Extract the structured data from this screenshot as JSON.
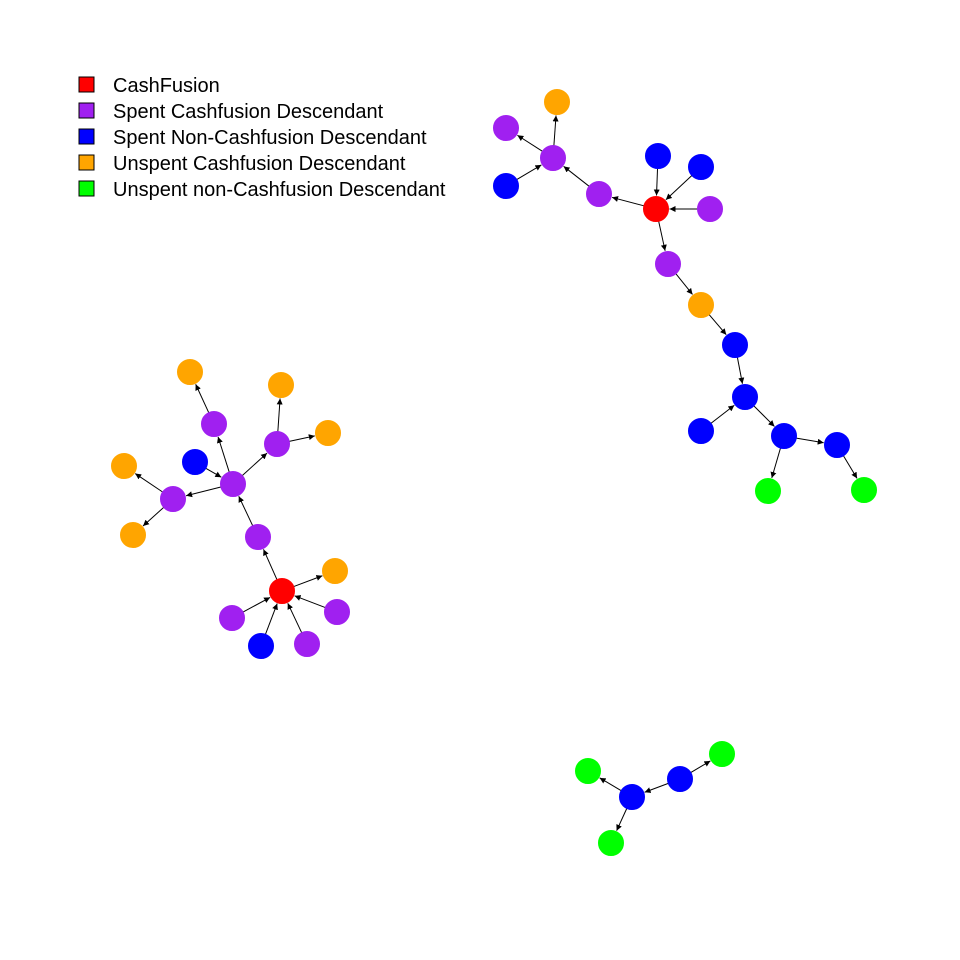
{
  "colors": {
    "cashfusion": "#ff0000",
    "spent_cf": "#a020f0",
    "spent_noncf": "#0000ff",
    "unspent_cf": "#ffa500",
    "unspent_noncf": "#00ff00",
    "edge": "#000000"
  },
  "legend": [
    {
      "label": "CashFusion",
      "type": "cashfusion"
    },
    {
      "label": "Spent Cashfusion Descendant",
      "type": "spent_cf"
    },
    {
      "label": "Spent Non-Cashfusion Descendant",
      "type": "spent_noncf"
    },
    {
      "label": "Unspent Cashfusion Descendant",
      "type": "unspent_cf"
    },
    {
      "label": "Unspent non-Cashfusion Descendant",
      "type": "unspent_noncf"
    }
  ],
  "nodes": [
    {
      "id": "A0",
      "type": "cashfusion"
    },
    {
      "id": "A1",
      "type": "spent_noncf"
    },
    {
      "id": "A2",
      "type": "spent_noncf"
    },
    {
      "id": "A3",
      "type": "spent_cf"
    },
    {
      "id": "A4",
      "type": "spent_cf"
    },
    {
      "id": "A5",
      "type": "spent_cf"
    },
    {
      "id": "A6",
      "type": "unspent_cf"
    },
    {
      "id": "A7",
      "type": "spent_cf"
    },
    {
      "id": "A8",
      "type": "spent_noncf"
    },
    {
      "id": "A9",
      "type": "spent_cf"
    },
    {
      "id": "A10",
      "type": "unspent_cf"
    },
    {
      "id": "A11",
      "type": "spent_noncf"
    },
    {
      "id": "A12",
      "type": "spent_noncf"
    },
    {
      "id": "A13",
      "type": "spent_noncf"
    },
    {
      "id": "A14",
      "type": "unspent_noncf"
    },
    {
      "id": "A15",
      "type": "spent_noncf"
    },
    {
      "id": "A16",
      "type": "unspent_noncf"
    },
    {
      "id": "A17",
      "type": "unspent_cf"
    },
    {
      "id": "A18",
      "type": "spent_cf"
    },
    {
      "id": "A19",
      "type": "spent_noncf"
    },
    {
      "id": "B0",
      "type": "cashfusion"
    },
    {
      "id": "B1",
      "type": "spent_cf"
    },
    {
      "id": "B2",
      "type": "spent_noncf"
    },
    {
      "id": "B3",
      "type": "spent_cf"
    },
    {
      "id": "B4",
      "type": "spent_cf"
    },
    {
      "id": "B5",
      "type": "unspent_cf"
    },
    {
      "id": "B6",
      "type": "spent_cf"
    },
    {
      "id": "B7",
      "type": "spent_cf"
    },
    {
      "id": "B8",
      "type": "spent_noncf"
    },
    {
      "id": "B9",
      "type": "spent_cf"
    },
    {
      "id": "B10",
      "type": "unspent_cf"
    },
    {
      "id": "B11",
      "type": "unspent_cf"
    },
    {
      "id": "B12",
      "type": "unspent_cf"
    },
    {
      "id": "B13",
      "type": "spent_cf"
    },
    {
      "id": "B14",
      "type": "unspent_cf"
    },
    {
      "id": "B15",
      "type": "unspent_cf"
    },
    {
      "id": "B16",
      "type": "unspent_cf"
    },
    {
      "id": "C0",
      "type": "spent_noncf"
    },
    {
      "id": "C1",
      "type": "spent_noncf"
    },
    {
      "id": "C2",
      "type": "unspent_noncf"
    },
    {
      "id": "C3",
      "type": "unspent_noncf"
    },
    {
      "id": "C4",
      "type": "unspent_noncf"
    }
  ],
  "edges": [
    [
      "A1",
      "A0"
    ],
    [
      "A2",
      "A0"
    ],
    [
      "A3",
      "A0"
    ],
    [
      "A0",
      "A4"
    ],
    [
      "A4",
      "A5"
    ],
    [
      "A5",
      "A6"
    ],
    [
      "A6",
      "A19"
    ],
    [
      "A19",
      "A8"
    ],
    [
      "A12",
      "A8"
    ],
    [
      "A8",
      "A13"
    ],
    [
      "A13",
      "A14"
    ],
    [
      "A13",
      "A15"
    ],
    [
      "A15",
      "A16"
    ],
    [
      "A0",
      "A7"
    ],
    [
      "A7",
      "A9"
    ],
    [
      "A9",
      "A10"
    ],
    [
      "A9",
      "A11"
    ],
    [
      "A9",
      "A18"
    ],
    [
      "A18",
      "A17"
    ],
    [
      "B1",
      "B0"
    ],
    [
      "B2",
      "B0"
    ],
    [
      "B3",
      "B0"
    ],
    [
      "B4",
      "B0"
    ],
    [
      "B0",
      "B5"
    ],
    [
      "B0",
      "B6"
    ],
    [
      "B6",
      "B7"
    ],
    [
      "B8",
      "B7"
    ],
    [
      "B7",
      "B9"
    ],
    [
      "B9",
      "B10"
    ],
    [
      "B7",
      "B13"
    ],
    [
      "B13",
      "B11"
    ],
    [
      "B13",
      "B12"
    ],
    [
      "B7",
      "B14"
    ],
    [
      "B14",
      "B15"
    ],
    [
      "B14",
      "B16"
    ],
    [
      "C0",
      "C1"
    ],
    [
      "C0",
      "C2"
    ],
    [
      "C0",
      "C3"
    ],
    [
      "C1",
      "C4"
    ]
  ]
}
